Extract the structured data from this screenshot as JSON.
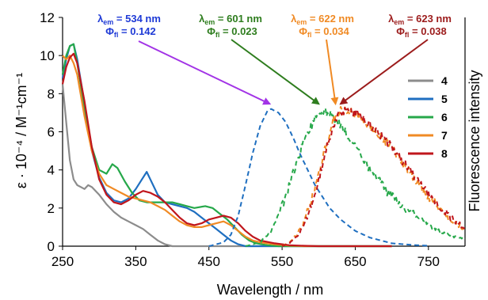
{
  "chart_data": {
    "type": "line",
    "xlabel": "Wavelength / nm",
    "ylabel": "ε · 10⁻⁴ / M⁻¹cm⁻¹",
    "y2label": "Fluorescence intensity",
    "xlim": [
      250,
      800
    ],
    "ylim": [
      0,
      12
    ],
    "xticks": [
      250,
      350,
      450,
      550,
      650,
      750
    ],
    "yticks": [
      0,
      2,
      4,
      6,
      8,
      10,
      12
    ],
    "grid": false,
    "legend_position": "right",
    "series": [
      {
        "name": "4",
        "color": "#8c8c8c",
        "kind": "absorption",
        "points": [
          [
            250,
            8.5
          ],
          [
            255,
            6.5
          ],
          [
            260,
            4.5
          ],
          [
            265,
            3.5
          ],
          [
            270,
            3.2
          ],
          [
            275,
            3.1
          ],
          [
            280,
            3.0
          ],
          [
            285,
            3.2
          ],
          [
            290,
            3.1
          ],
          [
            300,
            2.7
          ],
          [
            310,
            2.2
          ],
          [
            320,
            1.8
          ],
          [
            330,
            1.5
          ],
          [
            340,
            1.3
          ],
          [
            350,
            1.1
          ],
          [
            360,
            0.9
          ],
          [
            370,
            0.6
          ],
          [
            380,
            0.3
          ],
          [
            390,
            0.1
          ],
          [
            400,
            0.0
          ],
          [
            700,
            0.0
          ]
        ]
      },
      {
        "name": "5",
        "color": "#1f6fc0",
        "kind": "absorption",
        "points": [
          [
            250,
            8.8
          ],
          [
            255,
            9.8
          ],
          [
            260,
            10.5
          ],
          [
            265,
            10.6
          ],
          [
            270,
            9.8
          ],
          [
            280,
            7.5
          ],
          [
            290,
            5.0
          ],
          [
            300,
            3.6
          ],
          [
            310,
            2.8
          ],
          [
            320,
            2.4
          ],
          [
            330,
            2.3
          ],
          [
            340,
            2.5
          ],
          [
            350,
            3.0
          ],
          [
            360,
            3.6
          ],
          [
            365,
            3.9
          ],
          [
            370,
            3.5
          ],
          [
            380,
            2.7
          ],
          [
            390,
            2.3
          ],
          [
            400,
            2.2
          ],
          [
            410,
            2.1
          ],
          [
            420,
            2.0
          ],
          [
            430,
            1.8
          ],
          [
            440,
            1.5
          ],
          [
            450,
            1.2
          ],
          [
            460,
            0.9
          ],
          [
            470,
            0.6
          ],
          [
            480,
            0.3
          ],
          [
            490,
            0.1
          ],
          [
            500,
            0.0
          ],
          [
            700,
            0.0
          ]
        ]
      },
      {
        "name": "6",
        "color": "#26a84a",
        "kind": "absorption",
        "points": [
          [
            250,
            9.0
          ],
          [
            255,
            10.0
          ],
          [
            260,
            10.5
          ],
          [
            265,
            10.6
          ],
          [
            270,
            9.6
          ],
          [
            280,
            7.2
          ],
          [
            290,
            5.2
          ],
          [
            300,
            4.0
          ],
          [
            310,
            3.8
          ],
          [
            318,
            4.3
          ],
          [
            325,
            4.1
          ],
          [
            335,
            3.4
          ],
          [
            345,
            2.8
          ],
          [
            355,
            2.4
          ],
          [
            365,
            2.3
          ],
          [
            375,
            2.3
          ],
          [
            385,
            2.3
          ],
          [
            400,
            2.3
          ],
          [
            410,
            2.2
          ],
          [
            420,
            2.1
          ],
          [
            430,
            2.0
          ],
          [
            445,
            2.1
          ],
          [
            455,
            2.0
          ],
          [
            465,
            1.7
          ],
          [
            475,
            1.4
          ],
          [
            485,
            1.0
          ],
          [
            495,
            0.6
          ],
          [
            505,
            0.3
          ],
          [
            515,
            0.15
          ],
          [
            530,
            0.05
          ],
          [
            545,
            0.0
          ],
          [
            700,
            0.0
          ]
        ]
      },
      {
        "name": "7",
        "color": "#f08a24",
        "kind": "absorption",
        "points": [
          [
            250,
            10.0
          ],
          [
            255,
            9.8
          ],
          [
            260,
            10.0
          ],
          [
            265,
            9.6
          ],
          [
            270,
            9.0
          ],
          [
            280,
            6.8
          ],
          [
            290,
            5.0
          ],
          [
            300,
            3.8
          ],
          [
            310,
            3.2
          ],
          [
            320,
            3.0
          ],
          [
            330,
            2.8
          ],
          [
            340,
            2.6
          ],
          [
            350,
            2.5
          ],
          [
            360,
            2.4
          ],
          [
            370,
            2.3
          ],
          [
            380,
            2.1
          ],
          [
            390,
            1.9
          ],
          [
            400,
            1.6
          ],
          [
            410,
            1.3
          ],
          [
            420,
            1.1
          ],
          [
            430,
            1.0
          ],
          [
            440,
            1.0
          ],
          [
            450,
            1.1
          ],
          [
            460,
            1.2
          ],
          [
            470,
            1.3
          ],
          [
            480,
            1.1
          ],
          [
            490,
            0.8
          ],
          [
            500,
            0.5
          ],
          [
            510,
            0.3
          ],
          [
            520,
            0.2
          ],
          [
            540,
            0.1
          ],
          [
            560,
            0.03
          ],
          [
            580,
            0.0
          ],
          [
            700,
            0.0
          ]
        ]
      },
      {
        "name": "8",
        "color": "#c0161c",
        "kind": "absorption",
        "points": [
          [
            250,
            8.5
          ],
          [
            255,
            9.4
          ],
          [
            260,
            9.9
          ],
          [
            265,
            10.1
          ],
          [
            270,
            9.6
          ],
          [
            280,
            7.6
          ],
          [
            290,
            5.2
          ],
          [
            300,
            3.5
          ],
          [
            310,
            2.7
          ],
          [
            320,
            2.3
          ],
          [
            330,
            2.2
          ],
          [
            340,
            2.4
          ],
          [
            350,
            2.7
          ],
          [
            360,
            2.9
          ],
          [
            370,
            2.8
          ],
          [
            380,
            2.6
          ],
          [
            390,
            2.3
          ],
          [
            400,
            1.9
          ],
          [
            410,
            1.5
          ],
          [
            420,
            1.2
          ],
          [
            430,
            1.1
          ],
          [
            440,
            1.2
          ],
          [
            450,
            1.4
          ],
          [
            460,
            1.5
          ],
          [
            470,
            1.6
          ],
          [
            480,
            1.5
          ],
          [
            490,
            1.2
          ],
          [
            500,
            0.8
          ],
          [
            510,
            0.5
          ],
          [
            520,
            0.3
          ],
          [
            540,
            0.15
          ],
          [
            560,
            0.05
          ],
          [
            580,
            0.02
          ],
          [
            600,
            0.0
          ],
          [
            700,
            0.0
          ]
        ]
      },
      {
        "name": "5",
        "color": "#1f6fc0",
        "kind": "emission",
        "dashed": true,
        "points": [
          [
            450,
            0.0
          ],
          [
            470,
            0.2
          ],
          [
            480,
            0.6
          ],
          [
            490,
            1.6
          ],
          [
            500,
            3.2
          ],
          [
            510,
            4.9
          ],
          [
            520,
            6.3
          ],
          [
            530,
            7.1
          ],
          [
            535,
            7.2
          ],
          [
            545,
            7.0
          ],
          [
            555,
            6.5
          ],
          [
            565,
            5.7
          ],
          [
            575,
            4.8
          ],
          [
            585,
            4.0
          ],
          [
            595,
            3.2
          ],
          [
            605,
            2.6
          ],
          [
            615,
            2.0
          ],
          [
            630,
            1.4
          ],
          [
            650,
            0.8
          ],
          [
            670,
            0.45
          ],
          [
            700,
            0.15
          ],
          [
            730,
            0.06
          ],
          [
            750,
            0.02
          ]
        ]
      },
      {
        "name": "6",
        "color": "#26a84a",
        "kind": "emission",
        "dashed": true,
        "points": [
          [
            500,
            0.0
          ],
          [
            520,
            0.2
          ],
          [
            535,
            0.8
          ],
          [
            545,
            1.6
          ],
          [
            555,
            2.6
          ],
          [
            565,
            3.8
          ],
          [
            575,
            5.0
          ],
          [
            585,
            6.0
          ],
          [
            595,
            6.7
          ],
          [
            600,
            7.0
          ],
          [
            605,
            7.1
          ],
          [
            615,
            7.0
          ],
          [
            625,
            6.6
          ],
          [
            635,
            6.1
          ],
          [
            645,
            5.5
          ],
          [
            655,
            4.9
          ],
          [
            665,
            4.3
          ],
          [
            675,
            3.8
          ],
          [
            685,
            3.3
          ],
          [
            695,
            2.8
          ],
          [
            710,
            2.3
          ],
          [
            725,
            1.8
          ],
          [
            740,
            1.4
          ],
          [
            755,
            1.0
          ],
          [
            770,
            0.7
          ],
          [
            785,
            0.5
          ],
          [
            800,
            0.4
          ]
        ]
      },
      {
        "name": "7",
        "color": "#f08a24",
        "kind": "emission",
        "dashed": true,
        "points": [
          [
            550,
            0.0
          ],
          [
            560,
            0.2
          ],
          [
            570,
            0.6
          ],
          [
            580,
            1.3
          ],
          [
            590,
            2.4
          ],
          [
            600,
            3.8
          ],
          [
            610,
            5.3
          ],
          [
            620,
            6.6
          ],
          [
            630,
            7.1
          ],
          [
            640,
            7.1
          ],
          [
            650,
            6.9
          ],
          [
            660,
            6.6
          ],
          [
            670,
            6.3
          ],
          [
            680,
            5.9
          ],
          [
            690,
            5.5
          ],
          [
            700,
            5.1
          ],
          [
            710,
            4.6
          ],
          [
            720,
            4.1
          ],
          [
            730,
            3.6
          ],
          [
            740,
            3.1
          ],
          [
            750,
            2.6
          ],
          [
            760,
            2.2
          ],
          [
            770,
            1.8
          ],
          [
            780,
            1.4
          ],
          [
            790,
            1.1
          ],
          [
            800,
            0.9
          ]
        ]
      },
      {
        "name": "8",
        "color": "#c0161c",
        "kind": "emission",
        "dashed": true,
        "points": [
          [
            550,
            0.0
          ],
          [
            560,
            0.15
          ],
          [
            570,
            0.5
          ],
          [
            580,
            1.1
          ],
          [
            590,
            2.1
          ],
          [
            600,
            3.4
          ],
          [
            610,
            5.0
          ],
          [
            620,
            6.4
          ],
          [
            630,
            7.0
          ],
          [
            640,
            7.1
          ],
          [
            650,
            7.0
          ],
          [
            660,
            6.7
          ],
          [
            670,
            6.4
          ],
          [
            680,
            6.0
          ],
          [
            690,
            5.6
          ],
          [
            700,
            5.2
          ],
          [
            710,
            4.7
          ],
          [
            720,
            4.2
          ],
          [
            730,
            3.7
          ],
          [
            740,
            3.2
          ],
          [
            750,
            2.7
          ],
          [
            760,
            2.3
          ],
          [
            770,
            1.9
          ],
          [
            780,
            1.5
          ],
          [
            790,
            1.2
          ],
          [
            800,
            1.0
          ]
        ]
      }
    ],
    "annotations": [
      {
        "lambda_symbol": "λ",
        "lambda_sub": "em",
        "lambda_value": " = 534 nm",
        "phi_symbol": "Φ",
        "phi_sub": "fl",
        "phi_value": " = 0.142",
        "color": "#1e3ad6",
        "arrow_color": "#a233e6",
        "target_x": 533,
        "target_y": 7.3
      },
      {
        "lambda_symbol": "λ",
        "lambda_sub": "em",
        "lambda_value": " = 601 nm",
        "phi_symbol": "Φ",
        "phi_sub": "fl",
        "phi_value": " = 0.023",
        "color": "#2e7d1e",
        "arrow_color": "#2e7d1e",
        "target_x": 600,
        "target_y": 7.3
      },
      {
        "lambda_symbol": "λ",
        "lambda_sub": "em",
        "lambda_value": " = 622 nm",
        "phi_symbol": "Φ",
        "phi_sub": "fl",
        "phi_value": " = 0.034",
        "color": "#f08a24",
        "arrow_color": "#f08a24",
        "target_x": 623,
        "target_y": 7.3
      },
      {
        "lambda_symbol": "λ",
        "lambda_sub": "em",
        "lambda_value": " = 623 nm",
        "phi_symbol": "Φ",
        "phi_sub": "fl",
        "phi_value": " = 0.038",
        "color": "#9c1c1c",
        "arrow_color": "#9c1c1c",
        "target_x": 630,
        "target_y": 7.3
      }
    ],
    "legend": [
      {
        "label": "4",
        "color": "#8c8c8c"
      },
      {
        "label": "5",
        "color": "#1f6fc0"
      },
      {
        "label": "6",
        "color": "#26a84a"
      },
      {
        "label": "7",
        "color": "#f08a24"
      },
      {
        "label": "8",
        "color": "#c0161c"
      }
    ]
  }
}
